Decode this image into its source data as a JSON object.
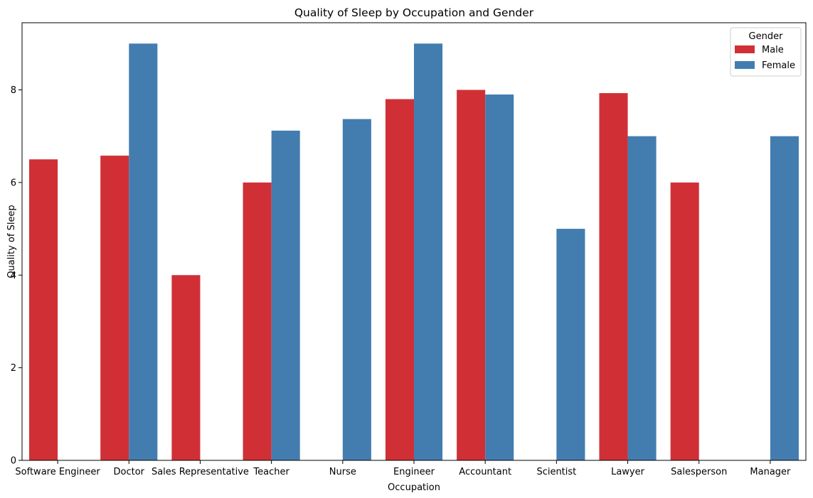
{
  "chart_data": {
    "type": "bar",
    "title": "Quality of Sleep by Occupation and Gender",
    "xlabel": "Occupation",
    "ylabel": "Quality of Sleep",
    "ylim": [
      0,
      9.45
    ],
    "yticks": [
      0,
      2,
      4,
      6,
      8
    ],
    "categories": [
      "Software Engineer",
      "Doctor",
      "Sales Representative",
      "Teacher",
      "Nurse",
      "Engineer",
      "Accountant",
      "Scientist",
      "Lawyer",
      "Salesperson",
      "Manager"
    ],
    "series": [
      {
        "name": "Male",
        "color": "#d03035",
        "values": [
          6.5,
          6.58,
          4.0,
          6.0,
          null,
          7.8,
          8.0,
          null,
          7.93,
          6.0,
          null
        ]
      },
      {
        "name": "Female",
        "color": "#437db0",
        "values": [
          null,
          9.0,
          null,
          7.12,
          7.37,
          9.0,
          7.9,
          5.0,
          7.0,
          null,
          7.0
        ]
      }
    ],
    "legend": {
      "title": "Gender",
      "placement": "top-right"
    },
    "grid": false
  }
}
